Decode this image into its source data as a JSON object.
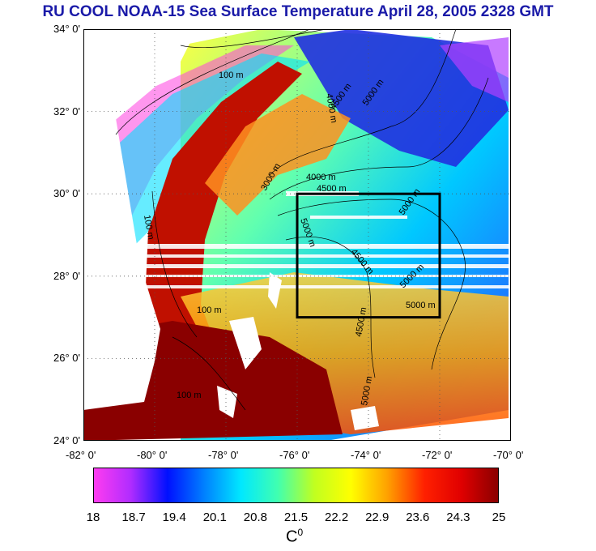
{
  "title": "RU COOL  NOAA-15 Sea Surface Temperature April 28, 2005 2328 GMT",
  "colors": {
    "title": "#1a1aa8",
    "land": "#ffffff",
    "box": "#000000"
  },
  "map": {
    "lon_range": [
      -82,
      -70
    ],
    "lat_range": [
      24,
      34
    ],
    "lon_ticks": [
      "-82° 0'",
      "-80° 0'",
      "-78° 0'",
      "-76° 0'",
      "-74° 0'",
      "-72° 0'",
      "-70° 0'"
    ],
    "lat_ticks": [
      "34° 0'",
      "32° 0'",
      "30° 0'",
      "28° 0'",
      "26° 0'",
      "24° 0'"
    ],
    "grid": "dotted",
    "study_box": {
      "lon": [
        -76,
        -72
      ],
      "lat": [
        27,
        30
      ]
    },
    "contour_labels": [
      "100 m",
      "100 m",
      "100 m",
      "100 m",
      "3000 m",
      "4000 m",
      "4000 m",
      "4500 m",
      "4500 m",
      "5000 m",
      "5000 m",
      "5000 m",
      "5000 m",
      "5000 m",
      "4500 m",
      "4500 m",
      "5000 m"
    ]
  },
  "colorbar": {
    "labels": [
      "18",
      "18.7",
      "19.4",
      "20.1",
      "20.8",
      "21.5",
      "22.2",
      "22.9",
      "23.6",
      "24.3",
      "25"
    ],
    "unit": "C",
    "unit_sup": "0",
    "stops": [
      "#ff3cf0",
      "#b02cff",
      "#0010ff",
      "#0080ff",
      "#00e8ff",
      "#40ffb0",
      "#c0ff20",
      "#ffff00",
      "#ffa000",
      "#ff2000",
      "#e00000",
      "#8a0000"
    ]
  }
}
